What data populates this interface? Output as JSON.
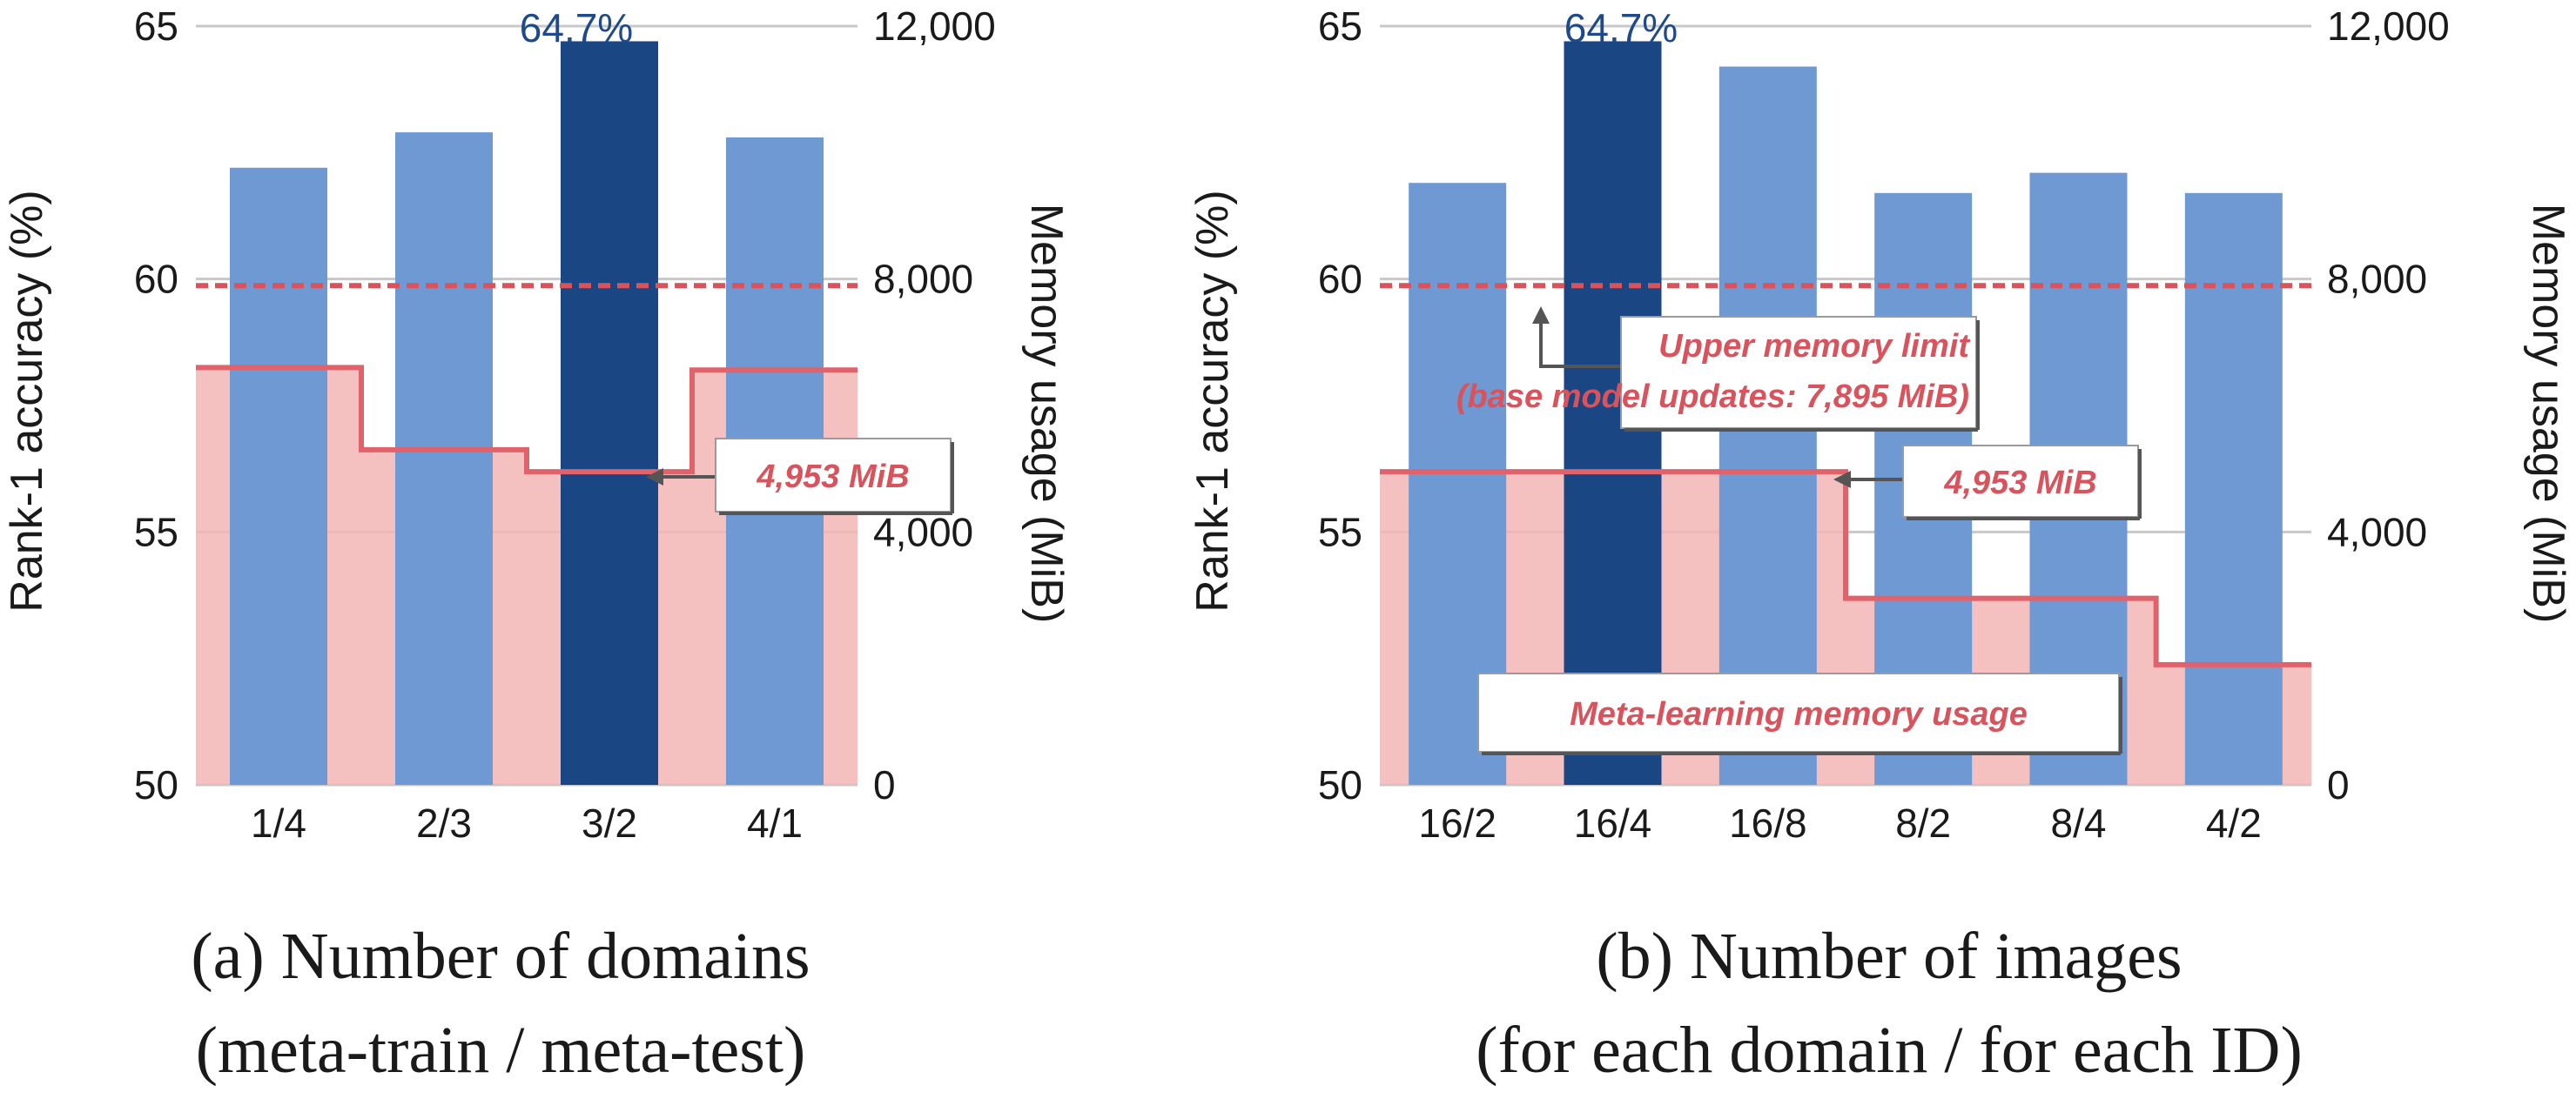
{
  "chart_data": [
    {
      "type": "bar",
      "categories": [
        "1/4",
        "2/3",
        "3/2",
        "4/1"
      ],
      "series": [
        {
          "values": [
            62.2,
            62.9,
            64.7,
            62.8
          ]
        }
      ],
      "highlight_index": 2,
      "peak_label": "64.7%",
      "memory_usage": [
        6600,
        5300,
        4953,
        6560
      ],
      "memory_limit": 7895,
      "ylabel": "Rank-1 accuracy (%)",
      "ylim": [
        50,
        65
      ],
      "yticks": [
        "50",
        "55",
        "60",
        "65"
      ],
      "y2label": "Memory usage  (MiB)",
      "y2lim": [
        0,
        12000
      ],
      "y2ticks": [
        "0",
        "4,000",
        "8,000",
        "12,000"
      ],
      "annotations": [
        {
          "text": "4,953 MiB"
        }
      ],
      "caption": [
        "(a) Number of domains",
        "(meta-train / meta-test)"
      ]
    },
    {
      "type": "bar",
      "categories": [
        "16/2",
        "16/4",
        "16/8",
        "8/2",
        "8/4",
        "4/2"
      ],
      "series": [
        {
          "values": [
            61.9,
            64.7,
            64.2,
            61.7,
            62.1,
            61.7
          ]
        }
      ],
      "highlight_index": 1,
      "peak_label": "64.7%",
      "memory_usage": [
        4953,
        4953,
        4953,
        2950,
        2950,
        1900
      ],
      "memory_limit": 7895,
      "ylabel": "Rank-1 accuracy (%)",
      "ylim": [
        50,
        65
      ],
      "yticks": [
        "50",
        "55",
        "60",
        "65"
      ],
      "y2label": "Memory usage  (MiB)",
      "y2lim": [
        0,
        12000
      ],
      "y2ticks": [
        "0",
        "4,000",
        "8,000",
        "12,000"
      ],
      "annotations": [
        {
          "text": "Upper memory limit"
        },
        {
          "text": "(base model updates: 7,895 MiB)"
        },
        {
          "text": "4,953 MiB"
        },
        {
          "text": "Meta-learning memory usage"
        }
      ],
      "caption": [
        "(b) Number of images",
        "(for each domain / for each ID)"
      ]
    }
  ],
  "colors": {
    "bar": "#6f99d2",
    "bar_highlight": "#1a4684",
    "memory_fill": "#f2b5b5",
    "memory_line": "#e0626b",
    "limit_line": "#d9535d",
    "grid": "#c8c8c8",
    "arrow": "#555555"
  }
}
